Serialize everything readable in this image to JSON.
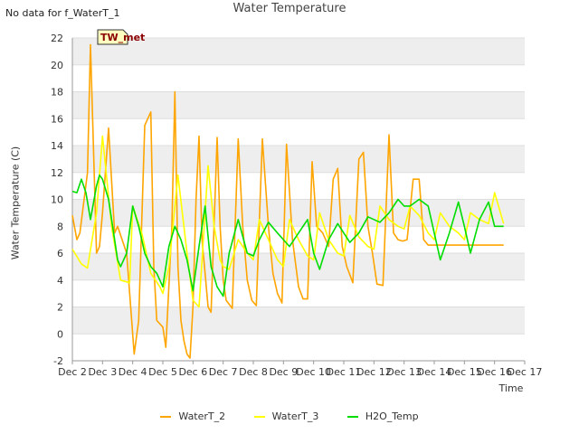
{
  "header": {
    "title": "Water Temperature",
    "no_data": "No data for f_WaterT_1"
  },
  "chart_data": {
    "type": "line",
    "title": "Water Temperature",
    "xlabel": "Time",
    "ylabel": "Water Temperature (C)",
    "xlim": [
      2,
      17
    ],
    "ylim": [
      -2,
      22
    ],
    "yticks": [
      -2,
      0,
      2,
      4,
      6,
      8,
      10,
      12,
      14,
      16,
      18,
      20,
      22
    ],
    "xticks": [
      {
        "value": 2,
        "label": "Dec 2"
      },
      {
        "value": 3,
        "label": "Dec 3"
      },
      {
        "value": 4,
        "label": "Dec 4"
      },
      {
        "value": 5,
        "label": "Dec 5"
      },
      {
        "value": 6,
        "label": "Dec 6"
      },
      {
        "value": 7,
        "label": "Dec 7"
      },
      {
        "value": 8,
        "label": "Dec 8"
      },
      {
        "value": 9,
        "label": "Dec 9"
      },
      {
        "value": 10,
        "label": "Dec 10"
      },
      {
        "value": 11,
        "label": "Dec 11"
      },
      {
        "value": 12,
        "label": "Dec 12"
      },
      {
        "value": 13,
        "label": "Dec 13"
      },
      {
        "value": 14,
        "label": "Dec 14"
      },
      {
        "value": 15,
        "label": "Dec 15"
      },
      {
        "value": 16,
        "label": "Dec 16"
      },
      {
        "value": 17,
        "label": "Dec 17"
      }
    ],
    "grid_bands": true,
    "annotation": "TW_met",
    "series": [
      {
        "name": "WaterT_2",
        "color": "#FFA500",
        "x": [
          2.0,
          2.15,
          2.25,
          2.5,
          2.6,
          2.8,
          2.9,
          3.0,
          3.2,
          3.4,
          3.5,
          3.8,
          3.95,
          4.05,
          4.2,
          4.4,
          4.6,
          4.7,
          4.8,
          5.0,
          5.1,
          5.3,
          5.4,
          5.5,
          5.6,
          5.7,
          5.8,
          5.9,
          6.0,
          6.1,
          6.2,
          6.3,
          6.4,
          6.5,
          6.6,
          6.8,
          6.9,
          7.0,
          7.1,
          7.3,
          7.5,
          7.65,
          7.8,
          7.95,
          8.1,
          8.3,
          8.5,
          8.65,
          8.8,
          8.95,
          9.1,
          9.3,
          9.5,
          9.65,
          9.8,
          9.95,
          10.1,
          10.3,
          10.5,
          10.65,
          10.8,
          10.95,
          11.1,
          11.3,
          11.5,
          11.65,
          11.8,
          11.95,
          12.1,
          12.3,
          12.5,
          12.65,
          12.8,
          12.95,
          13.1,
          13.3,
          13.5,
          13.65,
          13.8,
          13.95,
          14.1,
          14.3,
          14.5,
          14.65,
          14.8,
          14.95,
          15.1,
          15.3,
          15.5,
          15.65,
          15.8,
          15.95,
          16.1,
          16.3
        ],
        "y": [
          8.8,
          7.0,
          7.5,
          12.0,
          21.5,
          6.0,
          6.5,
          9.0,
          15.3,
          7.5,
          8.0,
          6.0,
          1.5,
          -1.5,
          1.0,
          15.5,
          16.5,
          5.0,
          1.0,
          0.5,
          -1.0,
          8.0,
          18.0,
          5.0,
          1.0,
          -0.5,
          -1.5,
          -1.8,
          2.0,
          10.0,
          14.7,
          7.0,
          4.5,
          2.0,
          1.6,
          14.6,
          8.0,
          4.0,
          2.5,
          1.9,
          14.5,
          8.0,
          4.0,
          2.5,
          2.1,
          14.5,
          8.0,
          4.5,
          3.0,
          2.3,
          14.1,
          7.0,
          3.5,
          2.6,
          2.6,
          12.8,
          8.0,
          7.5,
          6.5,
          11.5,
          12.3,
          6.5,
          5.0,
          3.8,
          13.0,
          13.5,
          8.0,
          6.0,
          3.7,
          3.6,
          14.8,
          7.5,
          7.0,
          6.9,
          7.0,
          11.5,
          11.5,
          7.0,
          6.6,
          6.6,
          6.6,
          6.6,
          6.6,
          6.6,
          6.6,
          6.6,
          6.6,
          6.6,
          6.6,
          6.6,
          6.6,
          6.6,
          6.6,
          6.6
        ]
      },
      {
        "name": "WaterT_3",
        "color": "#FFFF00",
        "x": [
          2.0,
          2.3,
          2.5,
          2.8,
          3.0,
          3.3,
          3.6,
          3.9,
          4.0,
          4.3,
          4.6,
          4.9,
          5.0,
          5.2,
          5.5,
          5.8,
          6.0,
          6.2,
          6.5,
          6.7,
          6.9,
          7.0,
          7.2,
          7.5,
          7.8,
          8.0,
          8.2,
          8.5,
          8.8,
          9.0,
          9.2,
          9.5,
          9.8,
          10.0,
          10.2,
          10.5,
          10.8,
          11.0,
          11.2,
          11.5,
          11.8,
          12.0,
          12.2,
          12.5,
          12.8,
          13.0,
          13.2,
          13.5,
          13.8,
          14.0,
          14.2,
          14.5,
          14.8,
          15.0,
          15.2,
          15.5,
          15.8,
          16.0,
          16.3
        ],
        "y": [
          6.3,
          5.2,
          4.9,
          9.0,
          14.7,
          8.0,
          4.0,
          3.8,
          9.5,
          7.5,
          4.5,
          3.5,
          3.0,
          5.0,
          11.8,
          6.0,
          2.5,
          2.0,
          12.5,
          8.0,
          5.5,
          5.0,
          4.8,
          7.0,
          6.0,
          5.5,
          8.5,
          7.0,
          5.5,
          5.0,
          8.5,
          7.0,
          5.8,
          5.5,
          9.0,
          7.0,
          6.0,
          5.8,
          8.8,
          7.2,
          6.5,
          6.3,
          9.5,
          8.5,
          8.0,
          7.8,
          9.5,
          8.8,
          7.5,
          7.0,
          9.0,
          8.0,
          7.5,
          7.0,
          9.0,
          8.5,
          8.2,
          10.5,
          8.2
        ]
      },
      {
        "name": "H2O_Temp",
        "color": "#00DD00",
        "x": [
          2.0,
          2.15,
          2.3,
          2.45,
          2.6,
          2.8,
          2.9,
          3.0,
          3.2,
          3.4,
          3.5,
          3.6,
          3.8,
          4.0,
          4.2,
          4.4,
          4.6,
          4.8,
          5.0,
          5.2,
          5.4,
          5.6,
          5.8,
          6.0,
          6.2,
          6.4,
          6.6,
          6.8,
          7.0,
          7.2,
          7.5,
          7.8,
          8.0,
          8.2,
          8.5,
          8.8,
          9.0,
          9.2,
          9.5,
          9.8,
          10.0,
          10.2,
          10.5,
          10.8,
          11.0,
          11.2,
          11.5,
          11.8,
          12.0,
          12.2,
          12.5,
          12.8,
          13.0,
          13.2,
          13.5,
          13.8,
          14.0,
          14.2,
          14.5,
          14.8,
          15.0,
          15.2,
          15.5,
          15.8,
          16.0,
          16.3
        ],
        "y": [
          10.6,
          10.5,
          11.5,
          10.5,
          8.5,
          11.0,
          11.8,
          11.5,
          10.0,
          7.0,
          5.5,
          5.0,
          6.0,
          9.5,
          8.0,
          6.0,
          5.0,
          4.5,
          3.5,
          6.5,
          8.0,
          7.0,
          5.5,
          3.2,
          6.5,
          9.5,
          5.0,
          3.5,
          2.8,
          6.0,
          8.5,
          6.0,
          5.8,
          7.0,
          8.3,
          7.5,
          7.0,
          6.5,
          7.5,
          8.5,
          6.0,
          4.8,
          7.0,
          8.2,
          7.5,
          6.8,
          7.5,
          8.7,
          8.5,
          8.3,
          9.0,
          10.0,
          9.5,
          9.5,
          10.0,
          9.5,
          7.5,
          5.5,
          7.5,
          9.8,
          8.0,
          6.0,
          8.5,
          9.8,
          8.0,
          8.0
        ]
      }
    ]
  }
}
